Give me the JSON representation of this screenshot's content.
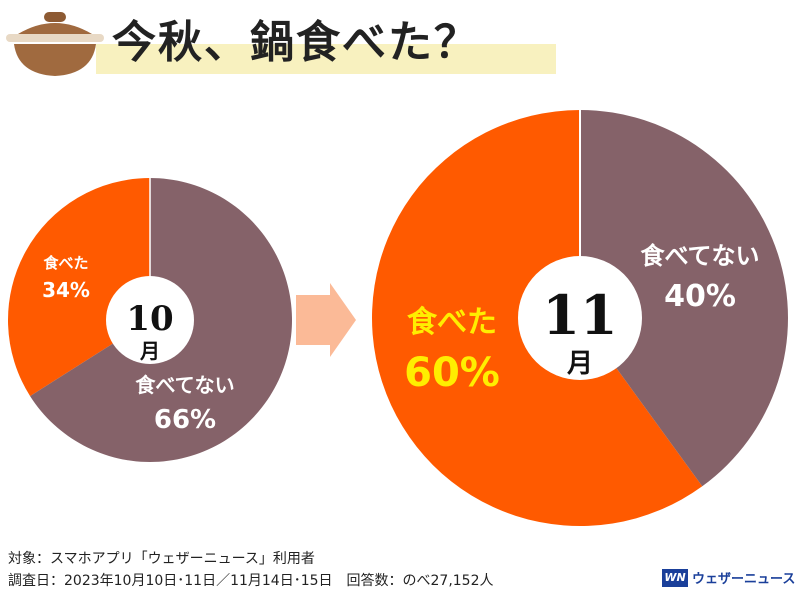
{
  "title": "今秋、鍋食べた？",
  "colors": {
    "ate": "#ff5a00",
    "not": "#856269",
    "highlight": "#ffee00",
    "arrow": "#fbb38c"
  },
  "chart_data": [
    {
      "type": "pie",
      "center_label": {
        "number": "10",
        "unit": "月"
      },
      "slices": [
        {
          "label": "食べた",
          "value": 34,
          "value_label": "34%"
        },
        {
          "label": "食べてない",
          "value": 66,
          "value_label": "66%"
        }
      ]
    },
    {
      "type": "pie",
      "center_label": {
        "number": "11",
        "unit": "月"
      },
      "slices": [
        {
          "label": "食べた",
          "value": 60,
          "value_label": "60%"
        },
        {
          "label": "食べてない",
          "value": 40,
          "value_label": "40%"
        }
      ]
    }
  ],
  "footer": {
    "line1": "対象：スマホアプリ「ウェザーニュース」利用者",
    "line2": "調査日：2023年10月10日･11日／11月14日･15日　回答数：のべ27,152人"
  },
  "brand": {
    "mark": "WN",
    "name": "ウェザーニュース"
  }
}
